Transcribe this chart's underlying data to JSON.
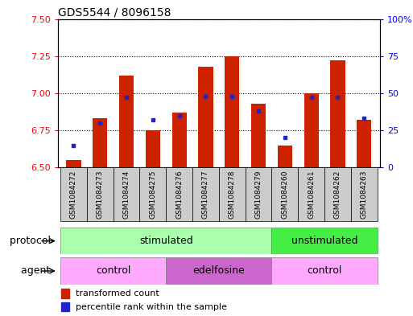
{
  "title": "GDS5544 / 8096158",
  "samples": [
    "GSM1084272",
    "GSM1084273",
    "GSM1084274",
    "GSM1084275",
    "GSM1084276",
    "GSM1084277",
    "GSM1084278",
    "GSM1084279",
    "GSM1084260",
    "GSM1084261",
    "GSM1084262",
    "GSM1084263"
  ],
  "bar_values": [
    6.55,
    6.83,
    7.12,
    6.75,
    6.87,
    7.18,
    7.25,
    6.93,
    6.65,
    7.0,
    7.22,
    6.82
  ],
  "bar_base": 6.5,
  "percentile_values": [
    15,
    30,
    47,
    32,
    35,
    48,
    48,
    38,
    20,
    47,
    47,
    33
  ],
  "ylim": [
    6.5,
    7.5
  ],
  "y2lim": [
    0,
    100
  ],
  "yticks": [
    6.5,
    6.75,
    7.0,
    7.25,
    7.5
  ],
  "y2ticks": [
    0,
    25,
    50,
    75,
    100
  ],
  "bar_color": "#cc2200",
  "dot_color": "#2222cc",
  "bar_width": 0.55,
  "protocol_stimulated_label": "stimulated",
  "protocol_unstimulated_label": "unstimulated",
  "agent_control_label": "control",
  "agent_edelfosine_label": "edelfosine",
  "protocol_label": "protocol",
  "agent_label": "agent",
  "legend_bar_label": "transformed count",
  "legend_dot_label": "percentile rank within the sample",
  "protocol_green_light": "#aaffaa",
  "protocol_green_dark": "#44ee44",
  "agent_pink_light": "#ffaaff",
  "agent_purple": "#cc66cc",
  "sample_bg": "#cccccc",
  "title_fontsize": 10,
  "tick_fontsize": 8,
  "label_fontsize": 9,
  "legend_fontsize": 8
}
